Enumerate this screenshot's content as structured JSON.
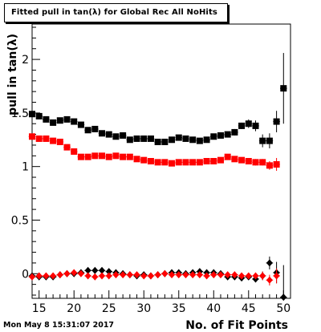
{
  "title": "Fitted pull in tan(λ) for Global Rec All NoHits",
  "timestamp": "Mon May  8 15:31:07 2017",
  "colors": {
    "black_series": "#000000",
    "red_series": "#ff0000",
    "axis": "#000000"
  },
  "chart_data": {
    "type": "scatter",
    "xlabel": "No. of Fit Points",
    "ylabel": "pull in tan(λ)",
    "xlim": [
      14,
      51
    ],
    "ylim": [
      -0.23,
      2.33
    ],
    "x_ticks": [
      15,
      20,
      25,
      30,
      35,
      40,
      45,
      50
    ],
    "y_ticks": [
      0,
      0.5,
      1,
      1.5,
      2
    ],
    "x_tick_labels": [
      "15",
      "20",
      "25",
      "30",
      "35",
      "40",
      "45",
      "50"
    ],
    "y_tick_labels": [
      "0",
      "0.5",
      "1",
      "1.5",
      "2"
    ],
    "grid": false,
    "series": [
      {
        "marker": "square",
        "color": "#000000",
        "x": [
          14,
          15,
          16,
          17,
          18,
          19,
          20,
          21,
          22,
          23,
          24,
          25,
          26,
          27,
          28,
          29,
          30,
          31,
          32,
          33,
          34,
          35,
          36,
          37,
          38,
          39,
          40,
          41,
          42,
          43,
          44,
          45,
          46,
          47,
          48,
          49,
          50
        ],
        "y": [
          1.49,
          1.47,
          1.44,
          1.41,
          1.43,
          1.44,
          1.42,
          1.39,
          1.34,
          1.35,
          1.31,
          1.3,
          1.28,
          1.29,
          1.25,
          1.26,
          1.26,
          1.26,
          1.23,
          1.23,
          1.25,
          1.27,
          1.26,
          1.25,
          1.24,
          1.25,
          1.28,
          1.29,
          1.3,
          1.32,
          1.38,
          1.4,
          1.38,
          1.24,
          1.24,
          1.42,
          1.73
        ],
        "err": [
          0.02,
          0.02,
          0.02,
          0.02,
          0.02,
          0.02,
          0.02,
          0.02,
          0.02,
          0.02,
          0.02,
          0.02,
          0.02,
          0.02,
          0.02,
          0.02,
          0.02,
          0.02,
          0.02,
          0.02,
          0.02,
          0.02,
          0.02,
          0.02,
          0.02,
          0.02,
          0.02,
          0.02,
          0.02,
          0.03,
          0.03,
          0.04,
          0.05,
          0.06,
          0.07,
          0.1,
          0.33
        ]
      },
      {
        "marker": "square",
        "color": "#ff0000",
        "x": [
          14,
          15,
          16,
          17,
          18,
          19,
          20,
          21,
          22,
          23,
          24,
          25,
          26,
          27,
          28,
          29,
          30,
          31,
          32,
          33,
          34,
          35,
          36,
          37,
          38,
          39,
          40,
          41,
          42,
          43,
          44,
          45,
          46,
          47,
          48,
          49
        ],
        "y": [
          1.28,
          1.26,
          1.26,
          1.24,
          1.23,
          1.18,
          1.14,
          1.09,
          1.09,
          1.1,
          1.1,
          1.09,
          1.1,
          1.09,
          1.09,
          1.07,
          1.06,
          1.05,
          1.04,
          1.04,
          1.03,
          1.04,
          1.04,
          1.04,
          1.04,
          1.05,
          1.05,
          1.06,
          1.09,
          1.07,
          1.06,
          1.05,
          1.04,
          1.04,
          1.01,
          1.02
        ],
        "err": [
          0.02,
          0.02,
          0.02,
          0.02,
          0.02,
          0.02,
          0.02,
          0.02,
          0.02,
          0.02,
          0.02,
          0.02,
          0.02,
          0.02,
          0.02,
          0.02,
          0.02,
          0.02,
          0.02,
          0.02,
          0.02,
          0.02,
          0.02,
          0.02,
          0.02,
          0.02,
          0.02,
          0.02,
          0.02,
          0.02,
          0.02,
          0.02,
          0.03,
          0.03,
          0.04,
          0.06
        ]
      },
      {
        "marker": "diamond",
        "color": "#000000",
        "x": [
          14,
          15,
          16,
          17,
          18,
          19,
          20,
          21,
          22,
          23,
          24,
          25,
          26,
          27,
          28,
          29,
          30,
          31,
          32,
          33,
          34,
          35,
          36,
          37,
          38,
          39,
          40,
          41,
          42,
          43,
          44,
          45,
          46,
          47,
          48,
          49,
          50
        ],
        "y": [
          -0.02,
          -0.03,
          -0.03,
          -0.03,
          -0.01,
          0.0,
          0.0,
          0.01,
          0.03,
          0.03,
          0.03,
          0.02,
          0.01,
          0.0,
          -0.01,
          -0.02,
          -0.01,
          -0.02,
          -0.01,
          0.0,
          0.01,
          0.01,
          0.0,
          0.01,
          0.02,
          0.01,
          0.01,
          0.0,
          -0.03,
          -0.03,
          -0.04,
          -0.03,
          -0.05,
          -0.02,
          0.1,
          0.01,
          -0.22
        ],
        "err": [
          0.01,
          0.01,
          0.01,
          0.01,
          0.01,
          0.01,
          0.01,
          0.01,
          0.01,
          0.01,
          0.01,
          0.01,
          0.01,
          0.01,
          0.01,
          0.01,
          0.01,
          0.01,
          0.01,
          0.01,
          0.01,
          0.01,
          0.01,
          0.01,
          0.01,
          0.01,
          0.01,
          0.01,
          0.01,
          0.01,
          0.02,
          0.02,
          0.03,
          0.04,
          0.06,
          0.1,
          0.3
        ]
      },
      {
        "marker": "diamond",
        "color": "#ff0000",
        "x": [
          14,
          15,
          16,
          17,
          18,
          19,
          20,
          21,
          22,
          23,
          24,
          25,
          26,
          27,
          28,
          29,
          30,
          31,
          32,
          33,
          34,
          35,
          36,
          37,
          38,
          39,
          40,
          41,
          42,
          43,
          44,
          45,
          46,
          47,
          48,
          49
        ],
        "y": [
          -0.03,
          -0.02,
          -0.02,
          -0.02,
          -0.01,
          0.0,
          0.01,
          0.0,
          -0.02,
          -0.03,
          -0.02,
          -0.02,
          -0.01,
          -0.01,
          -0.01,
          -0.01,
          -0.02,
          -0.02,
          -0.01,
          0.0,
          -0.01,
          -0.01,
          -0.01,
          -0.01,
          -0.01,
          -0.02,
          -0.01,
          -0.01,
          -0.01,
          -0.01,
          -0.02,
          -0.02,
          -0.02,
          -0.02,
          -0.06,
          -0.02
        ],
        "err": [
          0.01,
          0.01,
          0.01,
          0.01,
          0.01,
          0.01,
          0.01,
          0.01,
          0.01,
          0.01,
          0.01,
          0.01,
          0.01,
          0.01,
          0.01,
          0.01,
          0.01,
          0.01,
          0.01,
          0.01,
          0.01,
          0.01,
          0.01,
          0.01,
          0.01,
          0.01,
          0.01,
          0.01,
          0.01,
          0.01,
          0.01,
          0.02,
          0.03,
          0.04,
          0.05,
          0.07
        ]
      }
    ]
  }
}
